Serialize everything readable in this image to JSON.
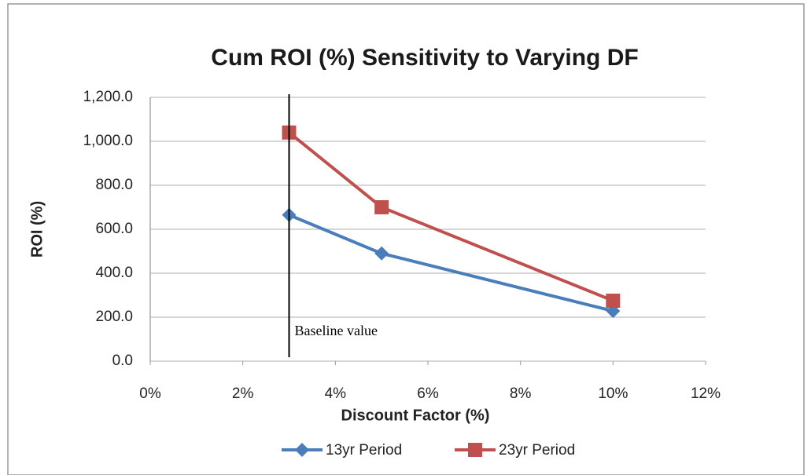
{
  "chart_data": {
    "type": "line",
    "title": "Cum ROI (%) Sensitivity to Varying DF",
    "x_label": "Discount Factor (%)",
    "y_label": "ROI (%)",
    "x": [
      3,
      5,
      10
    ],
    "series": [
      {
        "name": "13yr Period",
        "color": "#4a7ebb",
        "marker": "diamond",
        "values": [
          665,
          490,
          228
        ]
      },
      {
        "name": "23yr Period",
        "color": "#c0504d",
        "marker": "square",
        "values": [
          1040,
          700,
          275
        ]
      }
    ],
    "xlim": [
      0,
      12
    ],
    "xticks": [
      {
        "value": 0,
        "label": "0%"
      },
      {
        "value": 2,
        "label": "2%"
      },
      {
        "value": 4,
        "label": "4%"
      },
      {
        "value": 6,
        "label": "6%"
      },
      {
        "value": 8,
        "label": "8%"
      },
      {
        "value": 10,
        "label": "10%"
      },
      {
        "value": 12,
        "label": "12%"
      }
    ],
    "ylim": [
      0,
      1200
    ],
    "yticks": [
      {
        "value": 0,
        "label": "0.0"
      },
      {
        "value": 200,
        "label": "200.0"
      },
      {
        "value": 400,
        "label": "400.0"
      },
      {
        "value": 600,
        "label": "600.0"
      },
      {
        "value": 800,
        "label": "800.0"
      },
      {
        "value": 1000,
        "label": "1,000.0"
      },
      {
        "value": 1200,
        "label": "1,200.0"
      }
    ],
    "grid": true,
    "legend": "bottom",
    "annotations": [
      {
        "text": "Baseline value",
        "x": 3
      }
    ]
  }
}
